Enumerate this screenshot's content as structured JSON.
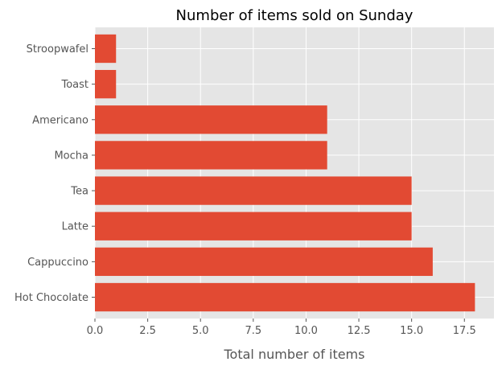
{
  "chart_data": {
    "type": "bar",
    "orientation": "horizontal",
    "title": "Number of items sold on Sunday",
    "xlabel": "Total number of items",
    "ylabel": "",
    "categories": [
      "Hot Chocolate",
      "Cappuccino",
      "Latte",
      "Tea",
      "Mocha",
      "Americano",
      "Toast",
      "Stroopwafel"
    ],
    "values": [
      18,
      16,
      15,
      15,
      11,
      11,
      1,
      1
    ],
    "xlim": [
      0,
      18.9
    ],
    "xticks": [
      0,
      2.5,
      5,
      7.5,
      10,
      12.5,
      15,
      17.5
    ],
    "xtick_labels": [
      "0.0",
      "2.5",
      "5.0",
      "7.5",
      "10.0",
      "12.5",
      "15.0",
      "17.5"
    ],
    "grid": true,
    "colors": {
      "bar": "#E24A33",
      "plot_background": "#E5E5E5",
      "grid": "#FFFFFF"
    }
  }
}
